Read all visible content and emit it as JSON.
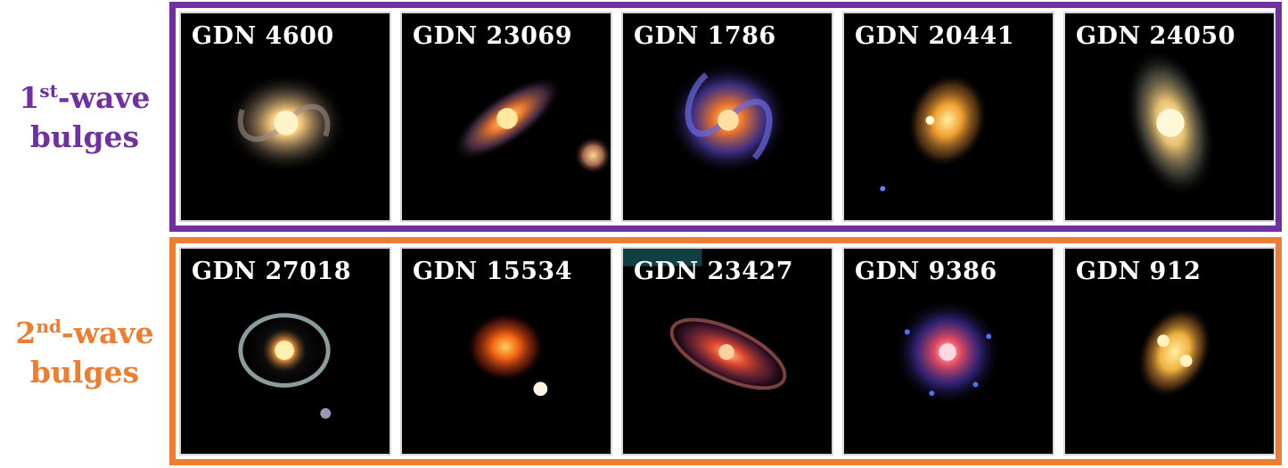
{
  "colors": {
    "first_wave": "#7030a0",
    "second_wave": "#ed7d31",
    "tile_background": "#000000",
    "label_text": "#ffffff"
  },
  "rows": [
    {
      "label_prefix": "1",
      "label_sup": "st",
      "label_suffix": "-wave",
      "label_line2": "bulges",
      "galaxies": [
        {
          "id": "GDN 4600",
          "appearance": "face-on spiral, golden core"
        },
        {
          "id": "GDN 23069",
          "appearance": "inclined orange spiral with small companion"
        },
        {
          "id": "GDN 1786",
          "appearance": "barred spiral with blue arms"
        },
        {
          "id": "GDN 20441",
          "appearance": "compact yellow-orange bulge"
        },
        {
          "id": "GDN 24050",
          "appearance": "elongated yellow spiral"
        }
      ]
    },
    {
      "label_prefix": "2",
      "label_sup": "nd",
      "label_suffix": "-wave",
      "label_line2": "bulges",
      "galaxies": [
        {
          "id": "GDN 27018",
          "appearance": "ring spiral with white-blue arms"
        },
        {
          "id": "GDN 15534",
          "appearance": "red-orange compact blob with companion"
        },
        {
          "id": "GDN 23427",
          "appearance": "inclined red spiral"
        },
        {
          "id": "GDN 9386",
          "appearance": "pink spiral with blue clumps"
        },
        {
          "id": "GDN 912",
          "appearance": "yellow clumpy disk"
        }
      ]
    }
  ]
}
